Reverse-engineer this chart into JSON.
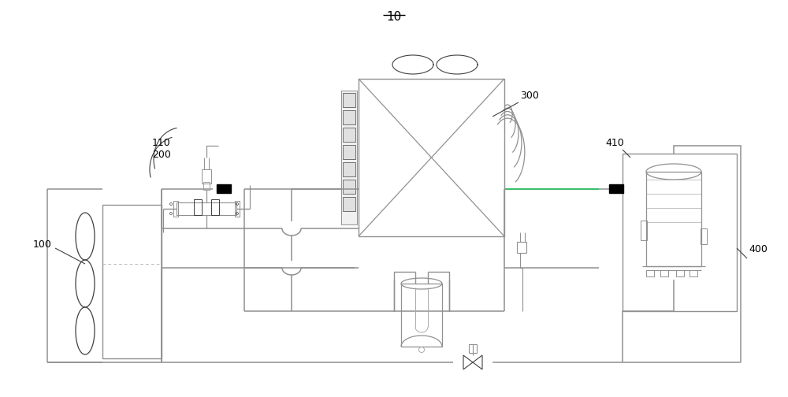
{
  "bg": "#ffffff",
  "lc": "#909090",
  "dc": "#404040",
  "black": "#000000",
  "green": "#00aa44",
  "title": "10",
  "label_100": "100",
  "label_110": "110",
  "label_200": "200",
  "label_300": "300",
  "label_400": "400",
  "label_410": "410",
  "fig_w": 10.0,
  "fig_h": 5.04,
  "dpi": 100
}
